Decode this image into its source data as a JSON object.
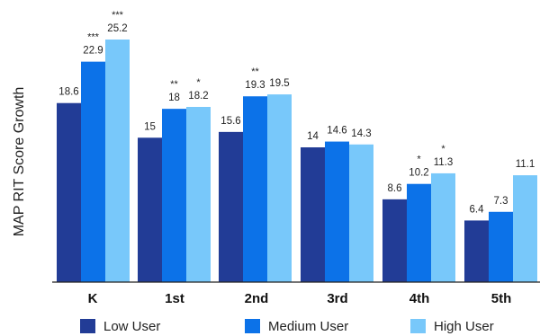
{
  "chart_data": {
    "type": "bar",
    "ylabel": "MAP RIT Score Growth",
    "categories": [
      "K",
      "1st",
      "2nd",
      "3rd",
      "4th",
      "5th"
    ],
    "ylim": [
      0,
      27
    ],
    "series": [
      {
        "name": "Low User",
        "color": "#223C96",
        "values": [
          18.6,
          15,
          15.6,
          14,
          8.6,
          6.4
        ],
        "labels": [
          "18.6",
          "15",
          "15.6",
          "14",
          "8.6",
          "6.4"
        ],
        "significance": [
          "",
          "",
          "",
          "",
          "",
          ""
        ]
      },
      {
        "name": "Medium User",
        "color": "#0C72E8",
        "values": [
          22.9,
          18,
          19.3,
          14.6,
          10.2,
          7.3
        ],
        "labels": [
          "22.9",
          "18",
          "19.3",
          "14.6",
          "10.2",
          "7.3"
        ],
        "significance": [
          "***",
          "**",
          "**",
          "",
          "*",
          ""
        ]
      },
      {
        "name": "High User",
        "color": "#78C8FA",
        "values": [
          25.2,
          18.2,
          19.5,
          14.3,
          11.3,
          11.1
        ],
        "labels": [
          "25.2",
          "18.2",
          "19.5",
          "14.3",
          "11.3",
          "11.1"
        ],
        "significance": [
          "***",
          "*",
          "",
          "",
          "*",
          ""
        ]
      }
    ],
    "grid": false,
    "legend_position": "bottom"
  }
}
